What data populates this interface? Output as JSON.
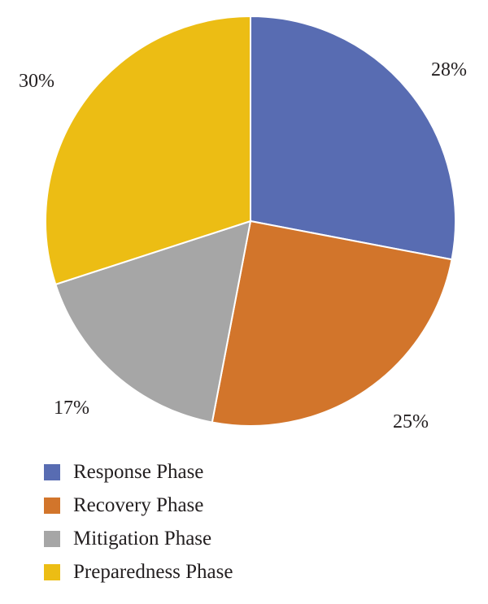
{
  "chart_data": {
    "type": "pie",
    "title": "",
    "slices": [
      {
        "label": "Response Phase",
        "value": 28,
        "value_label": "28%",
        "color": "#586cb2"
      },
      {
        "label": "Recovery Phase",
        "value": 25,
        "value_label": "25%",
        "color": "#d2752b"
      },
      {
        "label": "Mitigation Phase",
        "value": 17,
        "value_label": "17%",
        "color": "#a6a6a6"
      },
      {
        "label": "Preparedness Phase",
        "value": 30,
        "value_label": "30%",
        "color": "#ecbd14"
      }
    ],
    "start_angle_deg": 0,
    "direction": "clockwise",
    "legend_placement": "bottom-left"
  }
}
